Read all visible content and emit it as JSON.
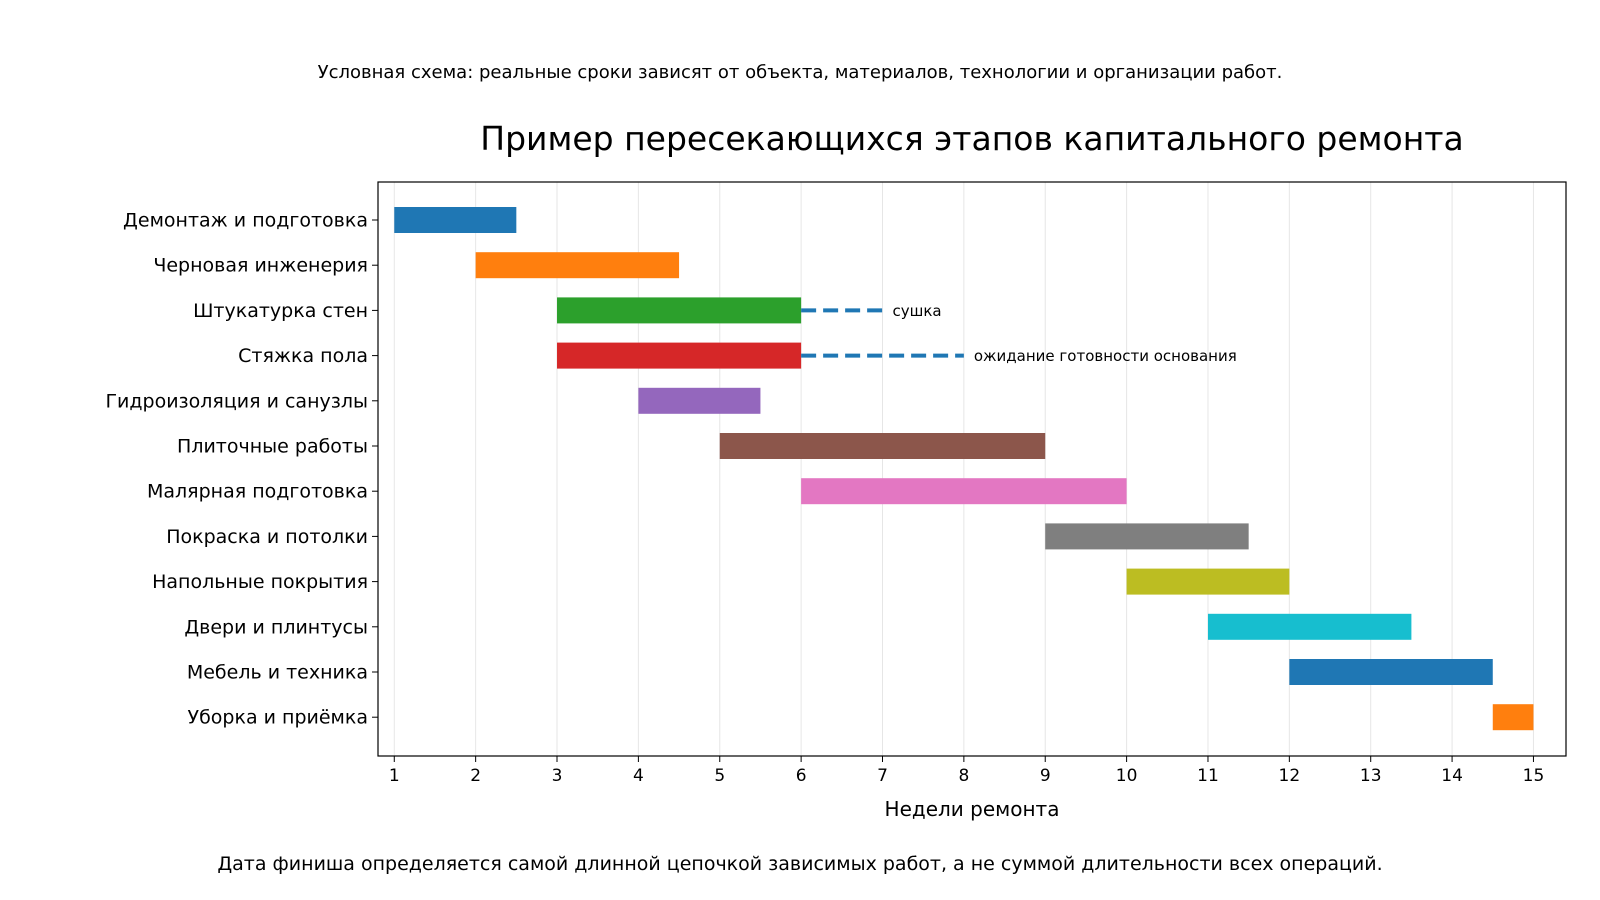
{
  "notes": {
    "top": "Условная схема: реальные сроки зависят от объекта, материалов, технологии и организации работ.",
    "bottom": "Дата финиша определяется самой длинной цепочкой зависимых работ, а не суммой длительности всех операций."
  },
  "chart_data": {
    "type": "bar",
    "orientation": "horizontal-gantt",
    "title": "Пример пересекающихся этапов капитального ремонта",
    "xlabel": "Недели ремонта",
    "xlim": [
      0.8,
      15.4
    ],
    "xticks": [
      1,
      2,
      3,
      4,
      5,
      6,
      7,
      8,
      9,
      10,
      11,
      12,
      13,
      14,
      15
    ],
    "grid": "vertical",
    "tasks": [
      {
        "name": "Демонтаж и подготовка",
        "start": 1,
        "end": 2.5,
        "color": "#1f77b4"
      },
      {
        "name": "Черновая инженерия",
        "start": 2,
        "end": 4.5,
        "color": "#ff7f0e"
      },
      {
        "name": "Штукатурка стен",
        "start": 3,
        "end": 6,
        "color": "#2ca02c",
        "wait": {
          "start": 6,
          "end": 7,
          "label": "сушка"
        }
      },
      {
        "name": "Стяжка пола",
        "start": 3,
        "end": 6,
        "color": "#d62728",
        "wait": {
          "start": 6,
          "end": 8,
          "label": "ожидание готовности основания"
        }
      },
      {
        "name": "Гидроизоляция и санузлы",
        "start": 4,
        "end": 5.5,
        "color": "#9467bd"
      },
      {
        "name": "Плиточные работы",
        "start": 5,
        "end": 9,
        "color": "#8c564b"
      },
      {
        "name": "Малярная подготовка",
        "start": 6,
        "end": 10,
        "color": "#e377c2"
      },
      {
        "name": "Покраска и потолки",
        "start": 9,
        "end": 11.5,
        "color": "#7f7f7f"
      },
      {
        "name": "Напольные покрытия",
        "start": 10,
        "end": 12,
        "color": "#bcbd22"
      },
      {
        "name": "Двери и плинтусы",
        "start": 11,
        "end": 13.5,
        "color": "#17becf"
      },
      {
        "name": "Мебель и техника",
        "start": 12,
        "end": 14.5,
        "color": "#1f77b4"
      },
      {
        "name": "Уборка и приёмка",
        "start": 14.5,
        "end": 15,
        "color": "#ff7f0e"
      }
    ],
    "wait_color": "#1f77b4"
  }
}
